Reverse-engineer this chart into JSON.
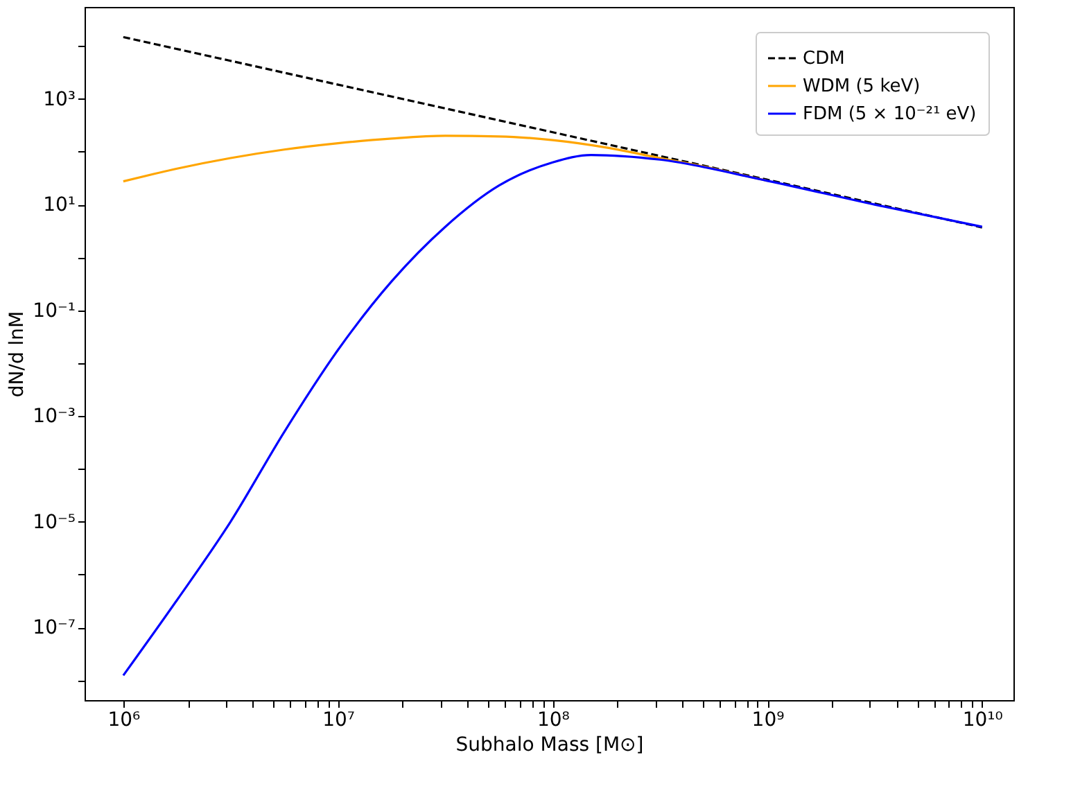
{
  "chart_data": {
    "type": "line",
    "xlabel": "Subhalo Mass [M⊙]",
    "ylabel": "dN/d lnM",
    "log": "xy",
    "grid": false,
    "legend": "top right",
    "marker": "none",
    "xlim": [
      660000,
      14000000000
    ],
    "ylim": [
      4.2e-09,
      55000
    ],
    "xticks": [
      {
        "value": 1000000,
        "label": "10⁶"
      },
      {
        "value": 2000000,
        "label": null
      },
      {
        "value": 3000000,
        "label": null
      },
      {
        "value": 4000000,
        "label": null
      },
      {
        "value": 5000000,
        "label": null
      },
      {
        "value": 6000000,
        "label": null
      },
      {
        "value": 7000000,
        "label": null
      },
      {
        "value": 8000000,
        "label": null
      },
      {
        "value": 9000000,
        "label": null
      },
      {
        "value": 10000000,
        "label": "10⁷"
      },
      {
        "value": 20000000,
        "label": null
      },
      {
        "value": 30000000,
        "label": null
      },
      {
        "value": 40000000,
        "label": null
      },
      {
        "value": 50000000,
        "label": null
      },
      {
        "value": 60000000,
        "label": null
      },
      {
        "value": 70000000,
        "label": null
      },
      {
        "value": 80000000,
        "label": null
      },
      {
        "value": 90000000,
        "label": null
      },
      {
        "value": 100000000,
        "label": "10⁸"
      },
      {
        "value": 200000000,
        "label": null
      },
      {
        "value": 300000000,
        "label": null
      },
      {
        "value": 400000000,
        "label": null
      },
      {
        "value": 500000000,
        "label": null
      },
      {
        "value": 600000000,
        "label": null
      },
      {
        "value": 700000000,
        "label": null
      },
      {
        "value": 800000000,
        "label": null
      },
      {
        "value": 900000000,
        "label": null
      },
      {
        "value": 1000000000,
        "label": "10⁹"
      },
      {
        "value": 2000000000,
        "label": null
      },
      {
        "value": 3000000000,
        "label": null
      },
      {
        "value": 4000000000,
        "label": null
      },
      {
        "value": 5000000000,
        "label": null
      },
      {
        "value": 6000000000,
        "label": null
      },
      {
        "value": 7000000000,
        "label": null
      },
      {
        "value": 8000000000,
        "label": null
      },
      {
        "value": 9000000000,
        "label": null
      },
      {
        "value": 10000000000,
        "label": "10¹⁰"
      }
    ],
    "yticks": [
      {
        "value": 1e-08,
        "label": null
      },
      {
        "value": 1e-07,
        "label": "10⁻⁷"
      },
      {
        "value": 1e-06,
        "label": null
      },
      {
        "value": 1e-05,
        "label": "10⁻⁵"
      },
      {
        "value": 0.0001,
        "label": null
      },
      {
        "value": 0.001,
        "label": "10⁻³"
      },
      {
        "value": 0.01,
        "label": null
      },
      {
        "value": 0.1,
        "label": "10⁻¹"
      },
      {
        "value": 1,
        "label": null
      },
      {
        "value": 10,
        "label": "10¹"
      },
      {
        "value": 100,
        "label": null
      },
      {
        "value": 1000,
        "label": "10³"
      },
      {
        "value": 10000,
        "label": null
      }
    ],
    "series": [
      {
        "name": "CDM",
        "color": "#000000",
        "line_style": "dashed",
        "x": [
          1000000,
          10000000,
          100000000,
          1000000000,
          10000000000
        ],
        "values": [
          14800,
          1860,
          234,
          29.5,
          3.7
        ]
      },
      {
        "name": "WDM (5 keV)",
        "color": "#ffa500",
        "line_style": "solid",
        "x": [
          1000000,
          1780000,
          3160000,
          5620000,
          10000000,
          17800000,
          31600000,
          56200000,
          100000000,
          178000000,
          316000000,
          562000000,
          1000000000
        ],
        "values": [
          27.5,
          47.9,
          75.9,
          110,
          145,
          178,
          200,
          195,
          166,
          120,
          76,
          48,
          28.2
        ]
      },
      {
        "name": "FDM (5 × 10⁻²¹ eV)",
        "color": "#0000ff",
        "line_style": "solid",
        "x": [
          1000000,
          1780000,
          3160000,
          5620000,
          10000000,
          17800000,
          31600000,
          56200000,
          100000000,
          151000000,
          316000000,
          1000000000,
          3160000000,
          10000000000
        ],
        "values": [
          1.23e-08,
          3.3e-07,
          1e-05,
          0.0005,
          0.0178,
          0.355,
          3.8,
          22.9,
          63,
          87,
          71,
          28.2,
          10,
          3.8
        ]
      }
    ]
  }
}
